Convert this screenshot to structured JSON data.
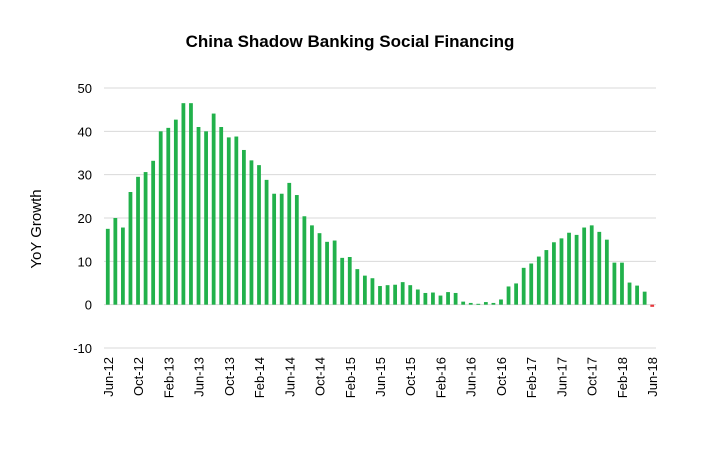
{
  "chart_data": {
    "type": "bar",
    "title": "China Shadow Banking Social Financing",
    "xlabel": "",
    "ylabel": "YoY Growth",
    "ylim": [
      -10,
      50
    ],
    "yticks": [
      -10,
      0,
      10,
      20,
      30,
      40,
      50
    ],
    "grid": true,
    "legend": "none",
    "colors": {
      "positive": "#21b14b",
      "negative": "#e8383d",
      "grid": "#d9d9d9"
    },
    "x_tick_labels": [
      "Jun-12",
      "Oct-12",
      "Feb-13",
      "Jun-13",
      "Oct-13",
      "Feb-14",
      "Jun-14",
      "Oct-14",
      "Feb-15",
      "Jun-15",
      "Oct-15",
      "Feb-16",
      "Jun-16",
      "Oct-16",
      "Feb-17",
      "Jun-17",
      "Oct-17",
      "Feb-18",
      "Jun-18"
    ],
    "categories": [
      "Jun-12",
      "Jul-12",
      "Aug-12",
      "Sep-12",
      "Oct-12",
      "Nov-12",
      "Dec-12",
      "Jan-13",
      "Feb-13",
      "Mar-13",
      "Apr-13",
      "May-13",
      "Jun-13",
      "Jul-13",
      "Aug-13",
      "Sep-13",
      "Oct-13",
      "Nov-13",
      "Dec-13",
      "Jan-14",
      "Feb-14",
      "Mar-14",
      "Apr-14",
      "May-14",
      "Jun-14",
      "Jul-14",
      "Aug-14",
      "Sep-14",
      "Oct-14",
      "Nov-14",
      "Dec-14",
      "Jan-15",
      "Feb-15",
      "Mar-15",
      "Apr-15",
      "May-15",
      "Jun-15",
      "Jul-15",
      "Aug-15",
      "Sep-15",
      "Oct-15",
      "Nov-15",
      "Dec-15",
      "Jan-16",
      "Feb-16",
      "Mar-16",
      "Apr-16",
      "May-16",
      "Jun-16",
      "Jul-16",
      "Aug-16",
      "Sep-16",
      "Oct-16",
      "Nov-16",
      "Dec-16",
      "Jan-17",
      "Feb-17",
      "Mar-17",
      "Apr-17",
      "May-17",
      "Jun-17",
      "Jul-17",
      "Aug-17",
      "Sep-17",
      "Oct-17",
      "Nov-17",
      "Dec-17",
      "Jan-18",
      "Feb-18",
      "Mar-18",
      "Apr-18",
      "May-18",
      "Jun-18"
    ],
    "values": [
      17.5,
      20,
      17.8,
      26,
      29.5,
      30.6,
      33.2,
      40,
      40.8,
      42.7,
      46.5,
      46.5,
      41,
      40,
      44.1,
      41,
      38.6,
      38.8,
      35.7,
      33.3,
      32.2,
      28.8,
      25.6,
      25.6,
      28.1,
      25.3,
      20.4,
      18.3,
      16.5,
      14.5,
      14.8,
      10.8,
      11,
      8.2,
      6.7,
      6.1,
      4.3,
      4.5,
      4.6,
      5.2,
      4.5,
      3.5,
      2.7,
      2.8,
      2.1,
      2.9,
      2.7,
      0.7,
      0.4,
      0.2,
      0.6,
      0.4,
      1.2,
      4.2,
      4.9,
      8.5,
      9.5,
      11.1,
      12.6,
      14.4,
      15.3,
      16.6,
      16.1,
      17.8,
      18.3,
      16.8,
      15,
      9.7,
      9.7,
      5.1,
      4.4,
      3,
      -0.5
    ]
  }
}
